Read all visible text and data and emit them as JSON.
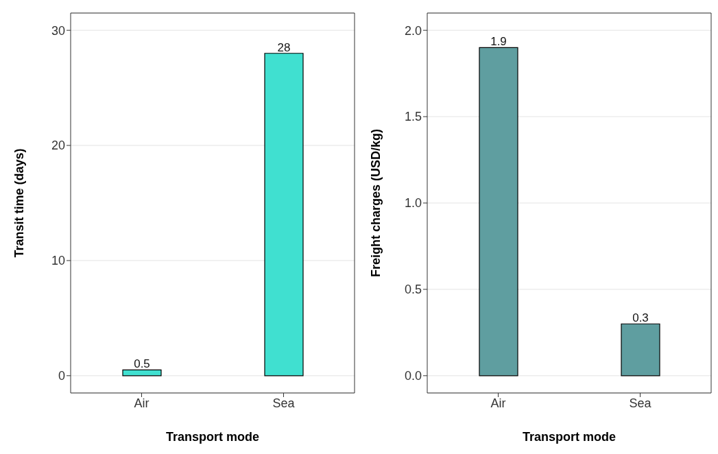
{
  "chart_data": [
    {
      "type": "bar",
      "categories": [
        "Air",
        "Sea"
      ],
      "values": [
        0.5,
        28
      ],
      "color": "#40e0d0",
      "xlabel": "Transport mode",
      "ylabel": "Transit time (days)",
      "ylim": [
        -1.5,
        31.5
      ],
      "yticks": [
        0,
        10,
        20,
        30
      ],
      "grid": "y",
      "data_labels": true
    },
    {
      "type": "bar",
      "categories": [
        "Air",
        "Sea"
      ],
      "values": [
        1.9,
        0.3
      ],
      "color": "#5f9ea0",
      "xlabel": "Transport mode",
      "ylabel": "Freight charges (USD/kg)",
      "ylim": [
        -0.1,
        2.1
      ],
      "yticks": [
        {
          "value": 0,
          "label": "0.0"
        },
        0.5,
        {
          "value": 1,
          "label": "1.0"
        },
        1.5,
        {
          "value": 2,
          "label": "2.0"
        }
      ],
      "grid": "y",
      "data_labels": true
    }
  ]
}
